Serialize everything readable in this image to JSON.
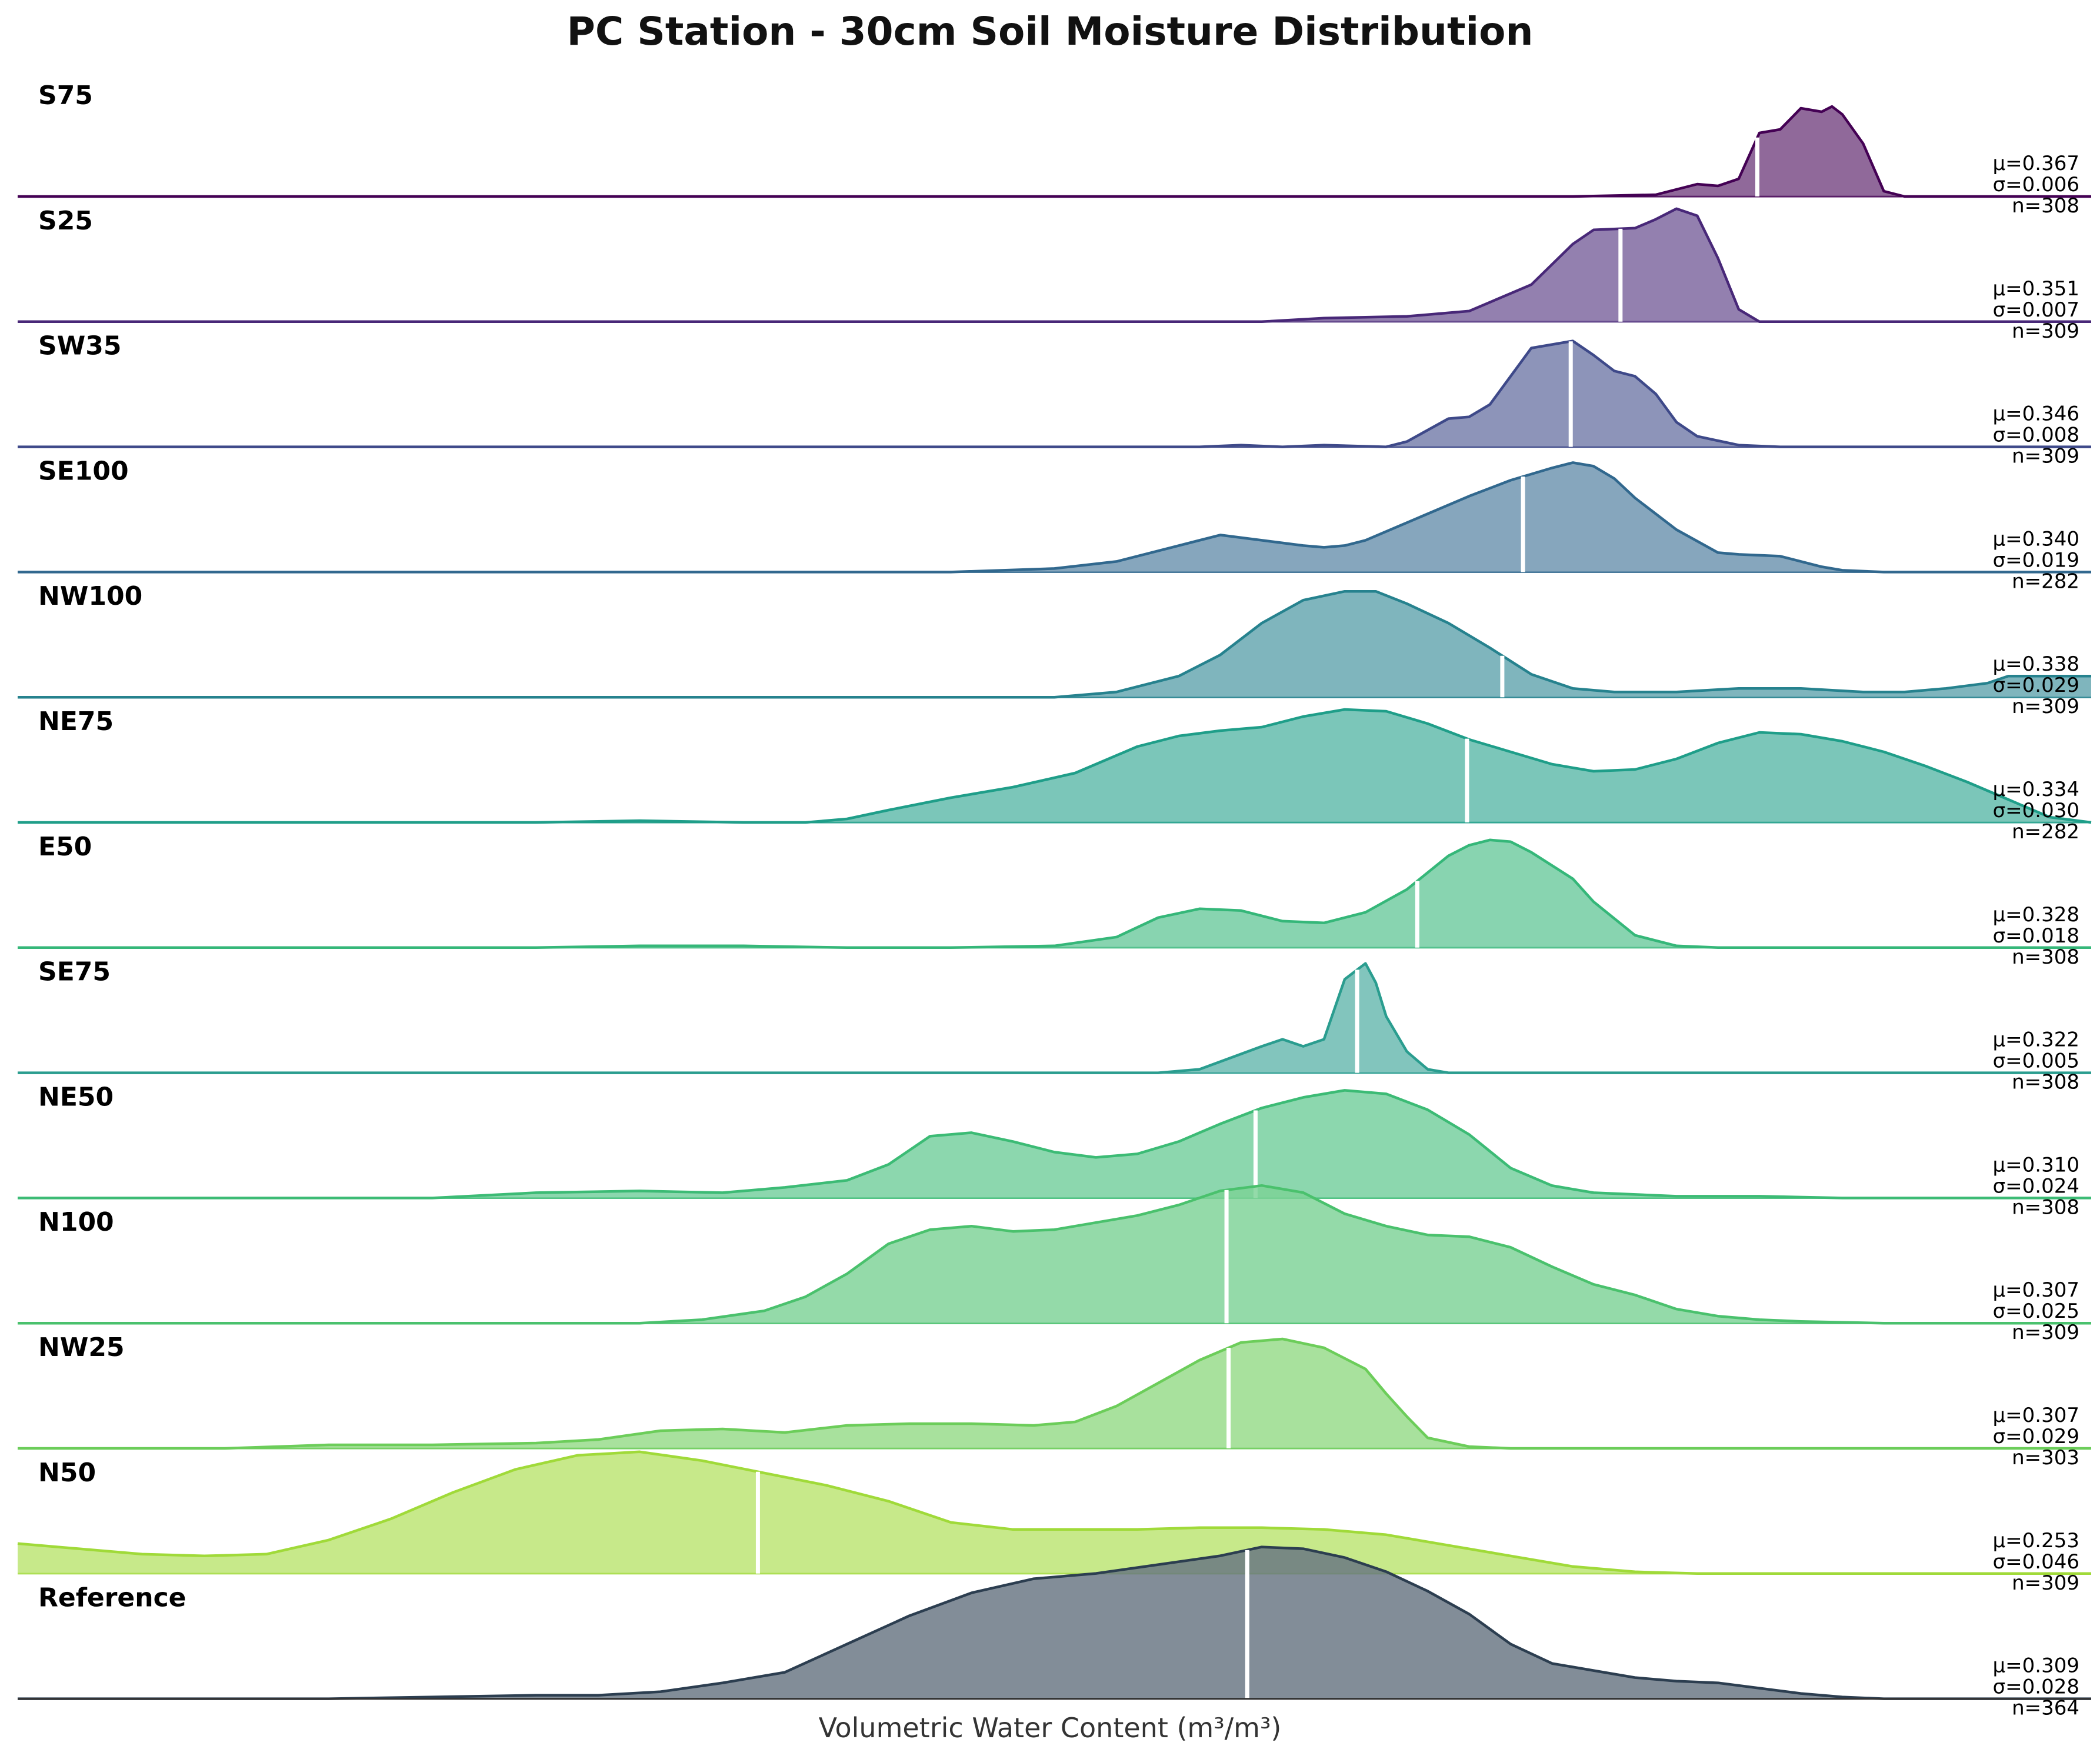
{
  "chart_data": {
    "type": "area",
    "title": "PC Station - 30cm Soil Moisture Distribution",
    "xlabel": "Volumetric Water Content (m³/m³)",
    "ylabel": "",
    "xlim": [
      0.0,
      1.0
    ],
    "grid": false,
    "series": [
      {
        "name": "S75",
        "color": "#440154",
        "mean_label": "μ=0.367",
        "std_label": "σ=0.006",
        "n_label": "n=308",
        "mean_pos": 0.839,
        "x": [
          0.0,
          0.65,
          0.75,
          0.79,
          0.8,
          0.81,
          0.82,
          0.83,
          0.84,
          0.85,
          0.86,
          0.87,
          0.875,
          0.88,
          0.89,
          0.9,
          0.91,
          1.0
        ],
        "y": [
          0.0,
          0.0,
          0.0,
          0.02,
          0.08,
          0.14,
          0.12,
          0.2,
          0.72,
          0.76,
          1.0,
          0.96,
          1.02,
          0.93,
          0.6,
          0.06,
          0.0,
          0.0
        ]
      },
      {
        "name": "S25",
        "color": "#482878",
        "mean_label": "μ=0.351",
        "std_label": "σ=0.007",
        "n_label": "n=309",
        "mean_pos": 0.773,
        "x": [
          0.0,
          0.6,
          0.63,
          0.67,
          0.7,
          0.71,
          0.73,
          0.75,
          0.76,
          0.78,
          0.79,
          0.8,
          0.81,
          0.82,
          0.83,
          0.84,
          1.0
        ],
        "y": [
          0.0,
          0.0,
          0.04,
          0.06,
          0.12,
          0.22,
          0.42,
          0.88,
          1.04,
          1.06,
          1.16,
          1.28,
          1.2,
          0.72,
          0.14,
          0.0,
          0.0
        ]
      },
      {
        "name": "SW35",
        "color": "#3e4989",
        "mean_label": "μ=0.346",
        "std_label": "σ=0.008",
        "n_label": "n=309",
        "mean_pos": 0.749,
        "x": [
          0.0,
          0.57,
          0.59,
          0.61,
          0.63,
          0.66,
          0.67,
          0.69,
          0.7,
          0.71,
          0.73,
          0.74,
          0.75,
          0.76,
          0.77,
          0.78,
          0.79,
          0.8,
          0.81,
          0.83,
          0.85,
          1.0
        ],
        "y": [
          0.0,
          0.0,
          0.02,
          0.0,
          0.02,
          0.0,
          0.06,
          0.32,
          0.34,
          0.48,
          1.12,
          1.16,
          1.2,
          1.04,
          0.86,
          0.8,
          0.6,
          0.28,
          0.12,
          0.02,
          0.0,
          0.0
        ]
      },
      {
        "name": "SE100",
        "color": "#31688e",
        "mean_label": "μ=0.340",
        "std_label": "σ=0.019",
        "n_label": "n=282",
        "mean_pos": 0.726,
        "x": [
          0.0,
          0.45,
          0.5,
          0.53,
          0.56,
          0.58,
          0.6,
          0.62,
          0.63,
          0.64,
          0.65,
          0.67,
          0.7,
          0.72,
          0.74,
          0.75,
          0.76,
          0.77,
          0.78,
          0.8,
          0.82,
          0.83,
          0.85,
          0.87,
          0.88,
          0.9,
          0.92,
          1.0
        ],
        "y": [
          0.0,
          0.0,
          0.04,
          0.12,
          0.3,
          0.42,
          0.36,
          0.3,
          0.28,
          0.3,
          0.36,
          0.56,
          0.86,
          1.04,
          1.18,
          1.24,
          1.2,
          1.06,
          0.84,
          0.48,
          0.22,
          0.2,
          0.18,
          0.06,
          0.02,
          0.0,
          0.0,
          0.0
        ]
      },
      {
        "name": "NW100",
        "color": "#26828e",
        "mean_label": "μ=0.338",
        "std_label": "σ=0.029",
        "n_label": "n=309",
        "mean_pos": 0.716,
        "x": [
          0.0,
          0.5,
          0.53,
          0.56,
          0.58,
          0.6,
          0.62,
          0.64,
          0.655,
          0.67,
          0.69,
          0.71,
          0.73,
          0.75,
          0.77,
          0.8,
          0.83,
          0.86,
          0.89,
          0.91,
          0.93,
          0.95,
          0.96,
          1.0
        ],
        "y": [
          0.0,
          0.0,
          0.06,
          0.24,
          0.48,
          0.84,
          1.1,
          1.2,
          1.2,
          1.06,
          0.84,
          0.56,
          0.26,
          0.1,
          0.06,
          0.06,
          0.1,
          0.1,
          0.06,
          0.06,
          0.1,
          0.16,
          0.24,
          0.24
        ]
      },
      {
        "name": "NE75",
        "color": "#1f9e89",
        "mean_label": "μ=0.334",
        "std_label": "σ=0.030",
        "n_label": "n=282",
        "mean_pos": 0.699,
        "x": [
          0.0,
          0.25,
          0.3,
          0.35,
          0.38,
          0.4,
          0.42,
          0.45,
          0.48,
          0.51,
          0.54,
          0.56,
          0.58,
          0.6,
          0.62,
          0.64,
          0.66,
          0.68,
          0.7,
          0.72,
          0.74,
          0.76,
          0.78,
          0.8,
          0.82,
          0.84,
          0.86,
          0.88,
          0.9,
          0.92,
          0.94,
          0.96,
          0.98,
          1.0
        ],
        "y": [
          0.0,
          0.0,
          0.02,
          0.0,
          0.0,
          0.04,
          0.14,
          0.28,
          0.4,
          0.56,
          0.86,
          0.98,
          1.04,
          1.08,
          1.2,
          1.28,
          1.26,
          1.12,
          0.94,
          0.8,
          0.66,
          0.58,
          0.6,
          0.72,
          0.9,
          1.02,
          1.0,
          0.92,
          0.8,
          0.64,
          0.46,
          0.26,
          0.06,
          0.0
        ]
      },
      {
        "name": "E50",
        "color": "#35b779",
        "mean_label": "μ=0.328",
        "std_label": "σ=0.018",
        "n_label": "n=308",
        "mean_pos": 0.675,
        "x": [
          0.0,
          0.25,
          0.3,
          0.35,
          0.4,
          0.45,
          0.5,
          0.53,
          0.55,
          0.57,
          0.59,
          0.61,
          0.63,
          0.65,
          0.67,
          0.69,
          0.7,
          0.71,
          0.72,
          0.73,
          0.75,
          0.76,
          0.78,
          0.8,
          0.82,
          0.85,
          1.0
        ],
        "y": [
          0.0,
          0.0,
          0.02,
          0.02,
          0.0,
          0.0,
          0.02,
          0.12,
          0.34,
          0.44,
          0.42,
          0.3,
          0.28,
          0.4,
          0.66,
          1.04,
          1.16,
          1.22,
          1.2,
          1.08,
          0.78,
          0.52,
          0.14,
          0.02,
          0.0,
          0.0,
          0.0
        ]
      },
      {
        "name": "SE75",
        "color": "#2a9d8f",
        "mean_label": "μ=0.322",
        "std_label": "σ=0.005",
        "n_label": "n=308",
        "mean_pos": 0.646,
        "x": [
          0.0,
          0.55,
          0.57,
          0.6,
          0.61,
          0.62,
          0.63,
          0.64,
          0.65,
          0.655,
          0.66,
          0.67,
          0.68,
          0.69,
          0.7,
          1.0
        ],
        "y": [
          0.0,
          0.0,
          0.04,
          0.3,
          0.38,
          0.3,
          0.38,
          1.06,
          1.24,
          1.02,
          0.64,
          0.24,
          0.04,
          0.0,
          0.0,
          0.0
        ]
      },
      {
        "name": "NE50",
        "color": "#3cbb75",
        "mean_label": "μ=0.310",
        "std_label": "σ=0.024",
        "n_label": "n=308",
        "mean_pos": 0.597,
        "x": [
          0.0,
          0.2,
          0.25,
          0.3,
          0.34,
          0.37,
          0.4,
          0.42,
          0.44,
          0.46,
          0.48,
          0.5,
          0.52,
          0.54,
          0.56,
          0.58,
          0.6,
          0.62,
          0.64,
          0.66,
          0.68,
          0.7,
          0.72,
          0.74,
          0.76,
          0.8,
          0.84,
          0.88,
          0.92,
          1.0
        ],
        "y": [
          0.0,
          0.0,
          0.06,
          0.08,
          0.06,
          0.12,
          0.2,
          0.38,
          0.7,
          0.74,
          0.64,
          0.52,
          0.46,
          0.5,
          0.64,
          0.84,
          1.02,
          1.14,
          1.22,
          1.18,
          1.0,
          0.72,
          0.34,
          0.14,
          0.06,
          0.02,
          0.02,
          0.0,
          0.0,
          0.0
        ]
      },
      {
        "name": "N100",
        "color": "#4ac16d",
        "mean_label": "μ=0.307",
        "std_label": "σ=0.025",
        "n_label": "n=309",
        "mean_pos": 0.583,
        "x": [
          0.0,
          0.3,
          0.33,
          0.36,
          0.38,
          0.4,
          0.42,
          0.44,
          0.46,
          0.48,
          0.5,
          0.52,
          0.54,
          0.56,
          0.58,
          0.6,
          0.62,
          0.64,
          0.66,
          0.68,
          0.7,
          0.72,
          0.74,
          0.76,
          0.78,
          0.8,
          0.82,
          0.84,
          0.86,
          0.9,
          1.0
        ],
        "y": [
          0.0,
          0.0,
          0.04,
          0.14,
          0.3,
          0.56,
          0.9,
          1.06,
          1.1,
          1.04,
          1.06,
          1.14,
          1.22,
          1.34,
          1.5,
          1.56,
          1.48,
          1.24,
          1.1,
          1.0,
          0.98,
          0.86,
          0.64,
          0.44,
          0.32,
          0.16,
          0.08,
          0.04,
          0.02,
          0.0,
          0.0
        ]
      },
      {
        "name": "NW25",
        "color": "#6ccd5a",
        "mean_label": "μ=0.307",
        "std_label": "σ=0.029",
        "n_label": "n=303",
        "mean_pos": 0.584,
        "x": [
          0.0,
          0.1,
          0.15,
          0.2,
          0.25,
          0.28,
          0.31,
          0.34,
          0.37,
          0.4,
          0.43,
          0.46,
          0.49,
          0.51,
          0.53,
          0.55,
          0.57,
          0.59,
          0.61,
          0.63,
          0.65,
          0.66,
          0.67,
          0.68,
          0.7,
          0.72,
          0.74,
          0.76,
          0.78,
          0.8,
          0.85,
          1.0
        ],
        "y": [
          0.0,
          0.0,
          0.04,
          0.04,
          0.06,
          0.1,
          0.2,
          0.22,
          0.18,
          0.26,
          0.28,
          0.28,
          0.26,
          0.3,
          0.48,
          0.74,
          1.0,
          1.2,
          1.24,
          1.14,
          0.9,
          0.62,
          0.36,
          0.12,
          0.02,
          0.0,
          0.0,
          0.0,
          0.0,
          0.0,
          0.0,
          0.0
        ]
      },
      {
        "name": "N50",
        "color": "#a0da39",
        "mean_label": "μ=0.253",
        "std_label": "σ=0.046",
        "n_label": "n=309",
        "mean_pos": 0.357,
        "x": [
          0.0,
          0.03,
          0.06,
          0.09,
          0.12,
          0.15,
          0.18,
          0.21,
          0.24,
          0.27,
          0.3,
          0.33,
          0.36,
          0.39,
          0.42,
          0.45,
          0.48,
          0.51,
          0.54,
          0.57,
          0.6,
          0.63,
          0.66,
          0.69,
          0.72,
          0.75,
          0.78,
          0.81,
          0.84,
          0.87,
          0.9,
          1.0
        ],
        "y": [
          0.34,
          0.28,
          0.22,
          0.2,
          0.22,
          0.38,
          0.62,
          0.92,
          1.18,
          1.34,
          1.38,
          1.28,
          1.14,
          1.0,
          0.82,
          0.58,
          0.5,
          0.5,
          0.5,
          0.52,
          0.52,
          0.5,
          0.44,
          0.32,
          0.2,
          0.08,
          0.02,
          0.0,
          0.0,
          0.0,
          0.0,
          0.0
        ]
      },
      {
        "name": "Reference",
        "color": "#2c3e50",
        "mean_label": "μ=0.309",
        "std_label": "σ=0.028",
        "n_label": "n=364",
        "mean_pos": 0.593,
        "x": [
          0.0,
          0.15,
          0.2,
          0.25,
          0.28,
          0.31,
          0.34,
          0.37,
          0.4,
          0.43,
          0.46,
          0.49,
          0.52,
          0.55,
          0.58,
          0.6,
          0.62,
          0.64,
          0.66,
          0.68,
          0.7,
          0.72,
          0.74,
          0.76,
          0.78,
          0.8,
          0.82,
          0.84,
          0.86,
          0.88,
          0.9,
          0.93,
          0.96,
          1.0
        ],
        "y": [
          0.0,
          0.0,
          0.02,
          0.04,
          0.04,
          0.08,
          0.18,
          0.3,
          0.62,
          0.94,
          1.2,
          1.36,
          1.42,
          1.52,
          1.62,
          1.72,
          1.7,
          1.6,
          1.44,
          1.22,
          0.96,
          0.62,
          0.4,
          0.32,
          0.24,
          0.2,
          0.18,
          0.12,
          0.06,
          0.02,
          0.0,
          0.0,
          0.0,
          0.0
        ]
      }
    ]
  }
}
